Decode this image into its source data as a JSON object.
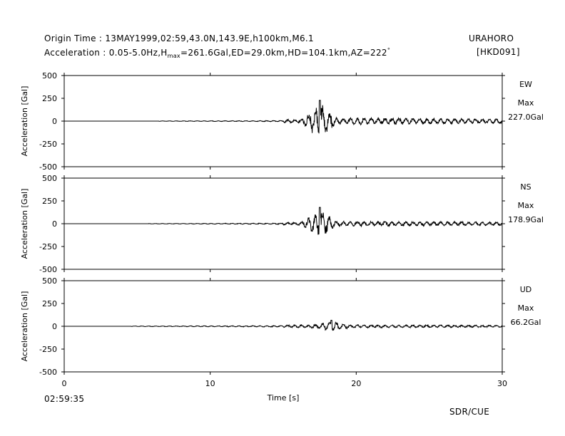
{
  "header": {
    "origin_line": "Origin Time : 13MAY1999,02:59,43.0N,143.9E,h100km,M6.1",
    "accel_prefix": "Acceleration : 0.05-5.0Hz,H",
    "accel_sub": "max",
    "accel_suffix": "=261.6Gal,ED=29.0km,HD=104.1km,AZ=222",
    "accel_degree": "°",
    "station_name": "URAHORO",
    "station_code": "[HKD091]"
  },
  "footer": {
    "start_time": "02:59:35",
    "credit": "SDR/CUE"
  },
  "chart_data": {
    "type": "line",
    "xlabel": "Time [s]",
    "xlim": [
      0,
      30
    ],
    "x_ticks": [
      "0",
      "10",
      "20",
      "30"
    ],
    "ylabel": "Acceleration [Gal]",
    "ylim": [
      -500,
      500
    ],
    "y_ticks": [
      "500",
      "250",
      "0",
      "-250",
      "-500"
    ],
    "line_color": "#000000",
    "series": [
      {
        "name": "EW",
        "max_label": "Max",
        "max_value": "227.0Gal",
        "max": 227.0,
        "onset": 6.5,
        "peak_time": 17.5,
        "mid_amp": 22,
        "late_amp": 40,
        "pre_amp": 3
      },
      {
        "name": "NS",
        "max_label": "Max",
        "max_value": "178.9Gal",
        "max": 178.9,
        "onset": 5.8,
        "peak_time": 17.5,
        "mid_amp": 18,
        "late_amp": 30,
        "pre_amp": 3
      },
      {
        "name": "UD",
        "max_label": "Max",
        "max_value": "66.2Gal",
        "max": 66.2,
        "onset": 4.6,
        "peak_time": 18.3,
        "mid_amp": 16,
        "late_amp": 18,
        "pre_amp": 4
      }
    ]
  }
}
